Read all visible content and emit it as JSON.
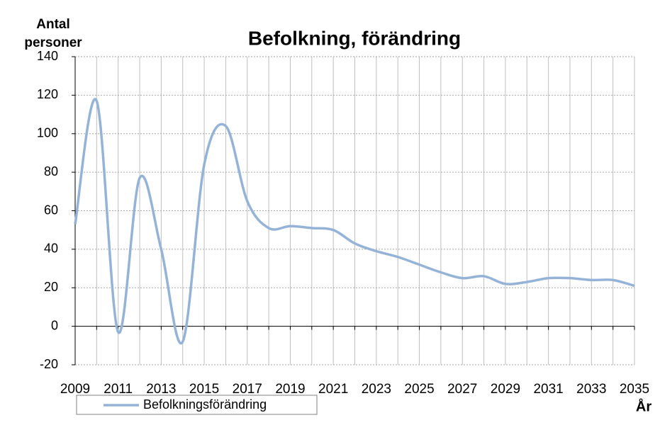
{
  "chart_data": {
    "type": "line",
    "title": "Befolkning, förändring",
    "y_label": "Antal personer",
    "x_label": "År",
    "x": [
      2009,
      2010,
      2011,
      2012,
      2013,
      2014,
      2015,
      2016,
      2017,
      2018,
      2019,
      2020,
      2021,
      2022,
      2023,
      2024,
      2025,
      2026,
      2027,
      2028,
      2029,
      2030,
      2031,
      2032,
      2033,
      2034,
      2035
    ],
    "series": [
      {
        "name": "Befolkningsförändring",
        "color": "#95b3d7",
        "values": [
          53,
          117,
          -3,
          77,
          40,
          -8,
          84,
          104,
          65,
          51,
          52,
          51,
          50,
          43,
          39,
          36,
          32,
          28,
          25,
          26,
          22,
          23,
          25,
          25,
          24,
          24,
          21
        ]
      }
    ],
    "xlim": [
      2009,
      2035
    ],
    "xticks": [
      2009,
      2011,
      2013,
      2015,
      2017,
      2019,
      2021,
      2023,
      2025,
      2027,
      2029,
      2031,
      2033,
      2035
    ],
    "ylim": [
      -20,
      140
    ],
    "yticks": [
      -20,
      0,
      20,
      40,
      60,
      80,
      100,
      120,
      140
    ],
    "grid": true,
    "legend": "bottom-left"
  }
}
